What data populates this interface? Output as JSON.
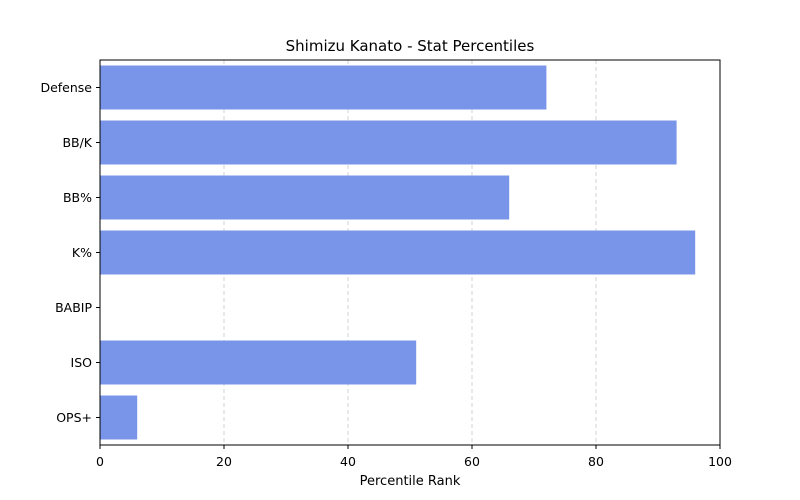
{
  "chart_data": {
    "type": "bar",
    "orientation": "horizontal",
    "title": "Shimizu Kanato - Stat Percentiles",
    "xlabel": "Percentile Rank",
    "ylabel": "",
    "xlim": [
      0,
      100
    ],
    "xticks": [
      "0",
      "20",
      "40",
      "60",
      "80",
      "100"
    ],
    "categories": [
      "Defense",
      "BB/K",
      "BB%",
      "K%",
      "BABIP",
      "ISO",
      "OPS+"
    ],
    "values": [
      72,
      93,
      66,
      96,
      0,
      51,
      6
    ],
    "bar_color": "#7995E9",
    "grid": "x-dashed"
  }
}
